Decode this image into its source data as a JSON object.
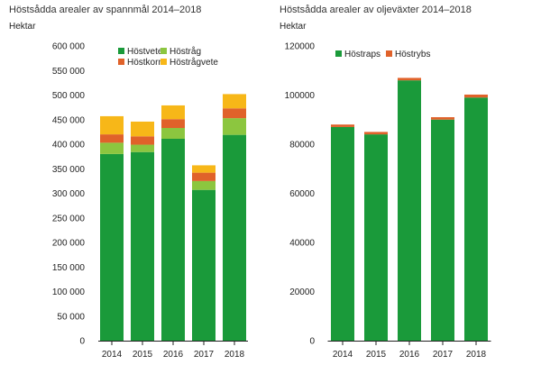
{
  "chart_data": [
    {
      "type": "bar",
      "stacked": true,
      "title": "Höstsådda arealer av spannmål 2014–2018",
      "ylabel": "Hektar",
      "categories": [
        "2014",
        "2015",
        "2016",
        "2017",
        "2018"
      ],
      "ylim": [
        0,
        600000
      ],
      "yticks": [
        0,
        50000,
        100000,
        150000,
        200000,
        250000,
        300000,
        350000,
        400000,
        450000,
        500000,
        550000,
        600000
      ],
      "ytick_labels": [
        "0",
        "50 000",
        "100 000",
        "150 000",
        "200 000",
        "250 000",
        "300 000",
        "350 000",
        "400 000",
        "450 000",
        "500 000",
        "550 000",
        "600 000"
      ],
      "grid": false,
      "legend": "top",
      "series": [
        {
          "name": "Höstvete",
          "color": "#1a9a3a",
          "values": [
            380000,
            384000,
            411000,
            307000,
            419000
          ]
        },
        {
          "name": "Höstråg",
          "color": "#8cc63f",
          "values": [
            23000,
            15000,
            22000,
            18000,
            34000
          ]
        },
        {
          "name": "Höstkorn",
          "color": "#e0622a",
          "values": [
            17000,
            17000,
            18000,
            17000,
            20000
          ]
        },
        {
          "name": "Höstrågvete",
          "color": "#f7b718",
          "values": [
            37000,
            30000,
            28000,
            15000,
            29000
          ]
        }
      ]
    },
    {
      "type": "bar",
      "stacked": true,
      "title": "Höstsådda arealer av oljeväxter 2014–2018",
      "ylabel": "Hektar",
      "categories": [
        "2014",
        "2015",
        "2016",
        "2017",
        "2018"
      ],
      "ylim": [
        0,
        120000
      ],
      "yticks": [
        0,
        20000,
        40000,
        60000,
        80000,
        100000,
        120000
      ],
      "ytick_labels": [
        "0",
        "20000",
        "40000",
        "60000",
        "80000",
        "100000",
        "120000"
      ],
      "grid": false,
      "legend": "top",
      "series": [
        {
          "name": "Höstraps",
          "color": "#1a9a3a",
          "values": [
            87000,
            84000,
            106000,
            90000,
            99000
          ]
        },
        {
          "name": "Höstrybs",
          "color": "#e0622a",
          "values": [
            1000,
            1000,
            1000,
            1000,
            1200
          ]
        }
      ]
    }
  ]
}
